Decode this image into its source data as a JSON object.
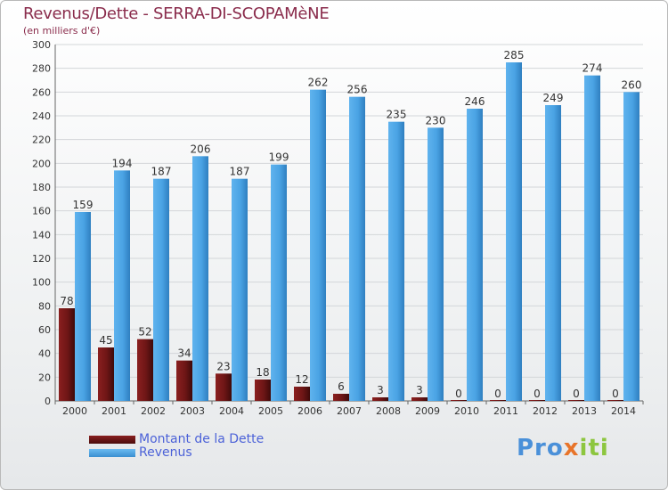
{
  "header": {
    "title": "Revenus/Dette - SERRA-DI-SCOPAMèNE",
    "subtitle": "(en milliers d'€)"
  },
  "legend": {
    "items": [
      {
        "label": "Montant de la Dette",
        "color": "#6e1616"
      },
      {
        "label": "Revenus",
        "color": "#4aa3e4"
      }
    ]
  },
  "brand": {
    "part1": "Pro",
    "part2": "x",
    "part3": "iti"
  },
  "chart_data": {
    "type": "bar",
    "categories": [
      "2000",
      "2001",
      "2002",
      "2003",
      "2004",
      "2005",
      "2006",
      "2007",
      "2008",
      "2009",
      "2010",
      "2011",
      "2012",
      "2013",
      "2014"
    ],
    "series": [
      {
        "name": "Montant de la Dette",
        "color": "#6e1616",
        "values": [
          78,
          45,
          52,
          34,
          23,
          18,
          12,
          6,
          3,
          3,
          0,
          0,
          0,
          0,
          0
        ]
      },
      {
        "name": "Revenus",
        "color": "#4aa3e4",
        "values": [
          159,
          194,
          187,
          206,
          187,
          199,
          262,
          256,
          235,
          230,
          246,
          285,
          249,
          274,
          260
        ]
      }
    ],
    "ylim": [
      0,
      300
    ],
    "yticks": [
      0,
      20,
      40,
      60,
      80,
      100,
      120,
      140,
      160,
      180,
      200,
      220,
      240,
      260,
      280,
      300
    ],
    "grid": true
  }
}
